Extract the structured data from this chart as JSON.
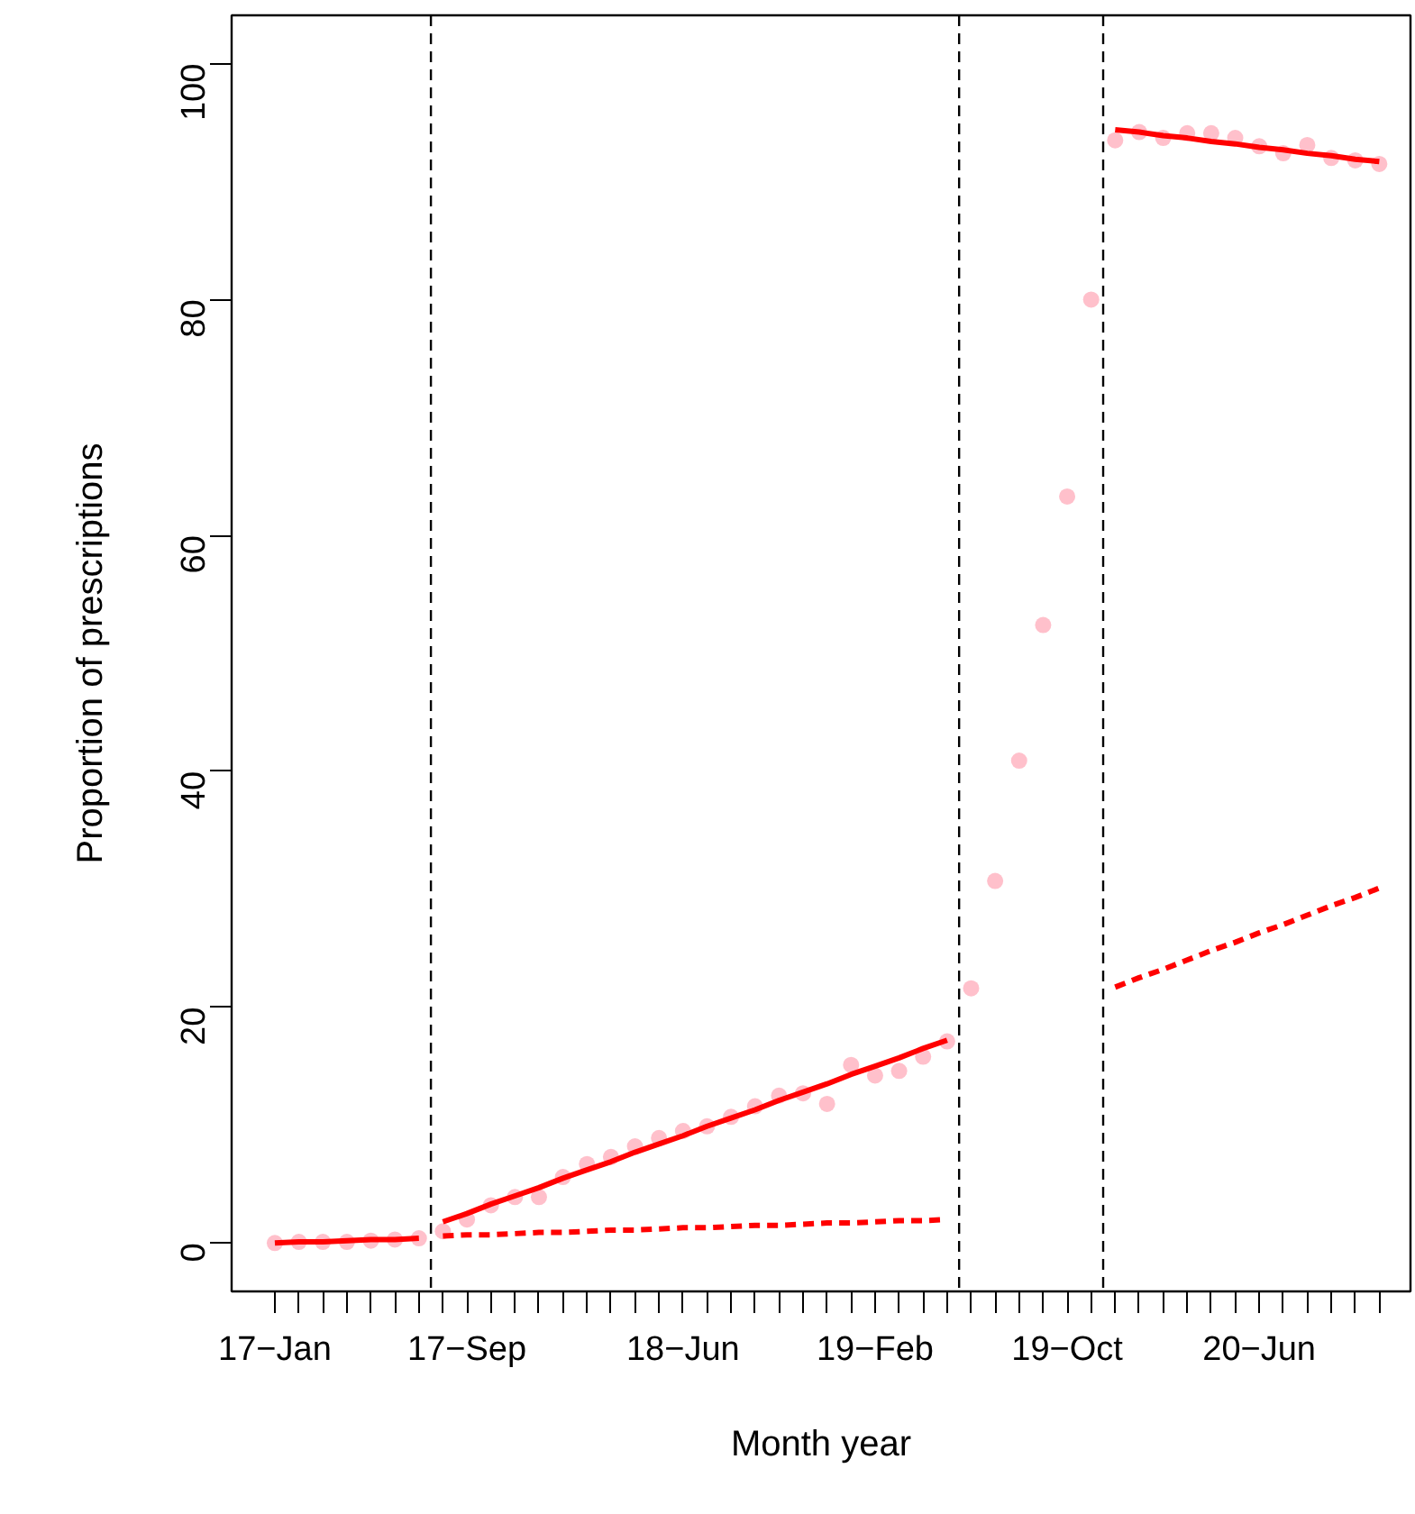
{
  "chart_data": {
    "type": "scatter",
    "xlabel": "Month year",
    "ylabel": "Proportion of prescriptions",
    "categories": [
      "17−Jan",
      null,
      null,
      null,
      null,
      null,
      null,
      null,
      "17−Sep",
      null,
      null,
      null,
      null,
      null,
      null,
      null,
      null,
      "18−Jun",
      null,
      null,
      null,
      null,
      null,
      null,
      null,
      "19−Feb",
      null,
      null,
      null,
      null,
      null,
      null,
      null,
      "19−Oct",
      null,
      null,
      null,
      null,
      null,
      null,
      null,
      "20−Jun",
      null,
      null,
      null,
      null,
      null
    ],
    "ylim": [
      -4.1,
      104.1
    ],
    "yticks": [
      0,
      20,
      40,
      60,
      80,
      100
    ],
    "series": [
      {
        "color": "#ffc0cb",
        "marker": "circle",
        "values": [
          0.0,
          0.1,
          0.1,
          0.1,
          0.2,
          0.3,
          0.4,
          1.0,
          2.0,
          3.2,
          3.9,
          3.9,
          5.6,
          6.7,
          7.3,
          8.2,
          8.9,
          9.5,
          9.9,
          10.7,
          11.6,
          12.5,
          12.7,
          11.8,
          15.1,
          14.2,
          14.6,
          15.8,
          17.1,
          21.6,
          30.7,
          40.9,
          52.4,
          63.3,
          80.0,
          93.5,
          94.2,
          93.7,
          94.1,
          94.1,
          93.7,
          93.0,
          92.4,
          93.1,
          92.0,
          91.8,
          91.5
        ]
      },
      {
        "type": "line",
        "color": "#ff0000",
        "line_style": "solid",
        "values": [
          0.0,
          0.1,
          0.1,
          0.2,
          0.3,
          0.3,
          0.4,
          null,
          null,
          null,
          null,
          null,
          null,
          null,
          null,
          null,
          null,
          null,
          null,
          null,
          null,
          null,
          null,
          null,
          null,
          null,
          null,
          null,
          null,
          null,
          null,
          null,
          null,
          null,
          null,
          null,
          null,
          null,
          null,
          null,
          null,
          null,
          null,
          null,
          null,
          null,
          null
        ]
      },
      {
        "type": "line",
        "color": "#ff0000",
        "line_style": "solid",
        "values": [
          null,
          null,
          null,
          null,
          null,
          null,
          null,
          1.8,
          2.5,
          3.3,
          4.0,
          4.7,
          5.5,
          6.2,
          6.9,
          7.7,
          8.4,
          9.1,
          9.9,
          10.6,
          11.3,
          12.1,
          12.8,
          13.5,
          14.3,
          15.0,
          15.7,
          16.5,
          17.2,
          null,
          null,
          null,
          null,
          null,
          null,
          null,
          null,
          null,
          null,
          null,
          null,
          null,
          null,
          null,
          null,
          null,
          null
        ]
      },
      {
        "type": "line",
        "color": "#ff0000",
        "line_style": "dashed",
        "values": [
          null,
          null,
          null,
          null,
          null,
          null,
          null,
          0.6,
          0.7,
          0.7,
          0.8,
          0.9,
          0.9,
          1.0,
          1.1,
          1.1,
          1.2,
          1.3,
          1.3,
          1.4,
          1.5,
          1.5,
          1.6,
          1.7,
          1.7,
          1.8,
          1.9,
          1.9,
          2.0,
          null,
          null,
          null,
          null,
          null,
          null,
          null,
          null,
          null,
          null,
          null,
          null,
          null,
          null,
          null,
          null,
          null,
          null
        ]
      },
      {
        "type": "line",
        "color": "#ff0000",
        "line_style": "solid",
        "values": [
          null,
          null,
          null,
          null,
          null,
          null,
          null,
          null,
          null,
          null,
          null,
          null,
          null,
          null,
          null,
          null,
          null,
          null,
          null,
          null,
          null,
          null,
          null,
          null,
          null,
          null,
          null,
          null,
          null,
          null,
          null,
          null,
          null,
          null,
          null,
          94.4,
          94.2,
          93.9,
          93.7,
          93.4,
          93.2,
          92.9,
          92.7,
          92.4,
          92.2,
          91.9,
          91.7
        ]
      },
      {
        "type": "line",
        "color": "#ff0000",
        "line_style": "dashed",
        "values": [
          null,
          null,
          null,
          null,
          null,
          null,
          null,
          null,
          null,
          null,
          null,
          null,
          null,
          null,
          null,
          null,
          null,
          null,
          null,
          null,
          null,
          null,
          null,
          null,
          null,
          null,
          null,
          null,
          null,
          null,
          null,
          null,
          null,
          null,
          null,
          21.7,
          22.5,
          23.2,
          24.0,
          24.8,
          25.5,
          26.3,
          27.0,
          27.8,
          28.6,
          29.3,
          30.1
        ]
      }
    ]
  }
}
